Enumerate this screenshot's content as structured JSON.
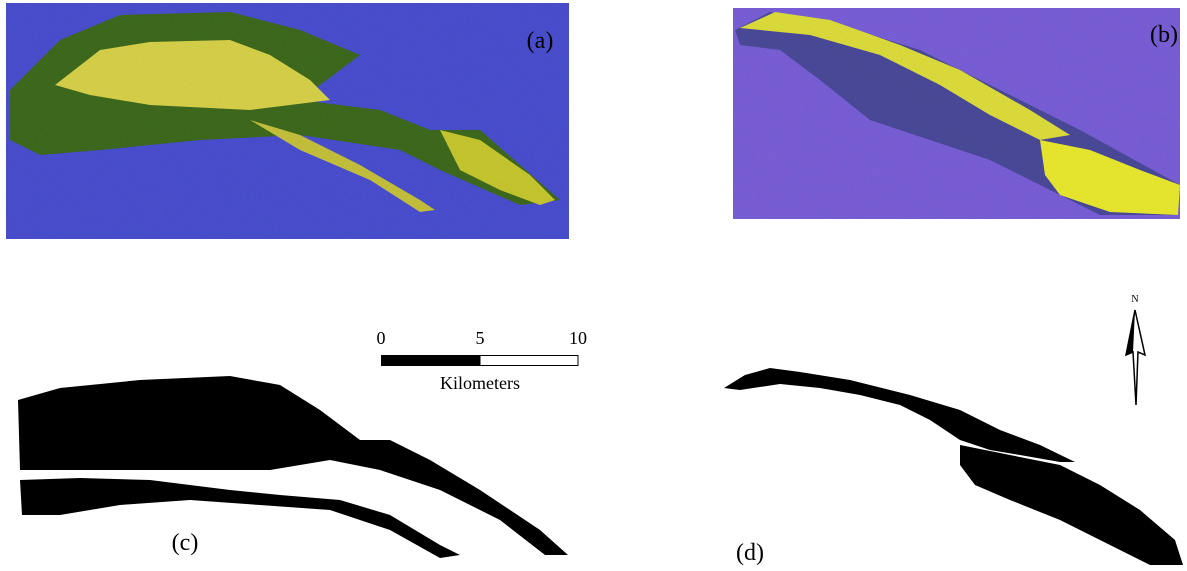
{
  "panels": [
    {
      "label": "(a)"
    },
    {
      "label": "(b)"
    },
    {
      "label": "(c)"
    },
    {
      "label": "(d)"
    }
  ],
  "scale_bar": {
    "labels": [
      "0",
      "5",
      "10"
    ],
    "unit": "Kilometers"
  },
  "north_arrow": {
    "label": "N"
  }
}
